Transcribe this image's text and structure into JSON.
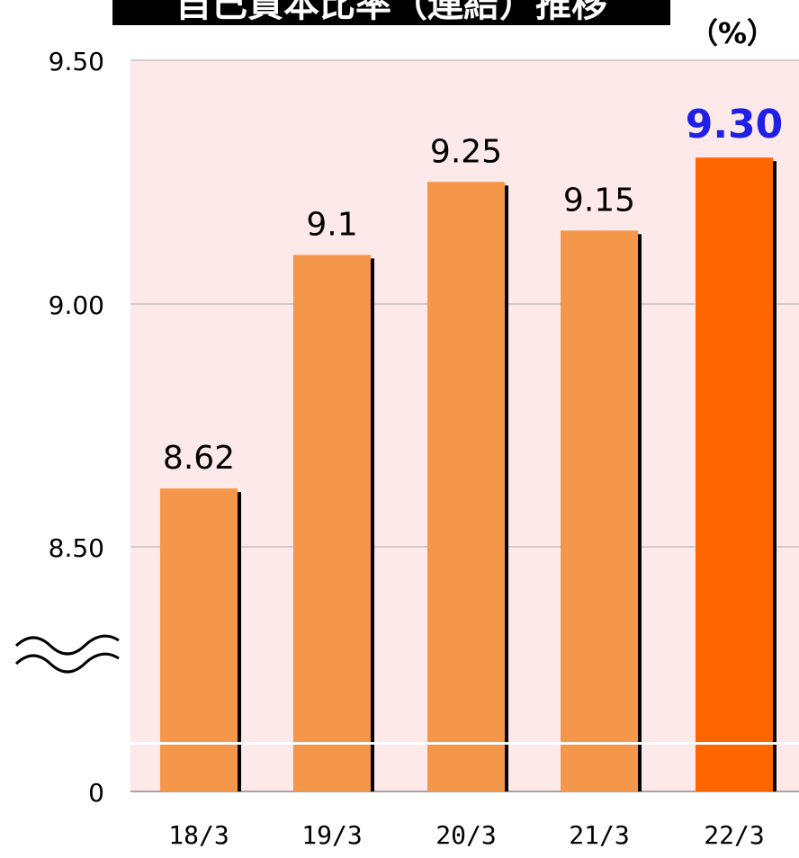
{
  "chart_data": {
    "type": "bar",
    "title": "自己資本比率（連結）推移",
    "unit_label": "（%）",
    "categories": [
      "18/3",
      "19/3",
      "20/3",
      "21/3",
      "22/3"
    ],
    "values": [
      8.62,
      9.1,
      9.25,
      9.15,
      9.3
    ],
    "data_labels": [
      "8.62",
      "9.1",
      "9.25",
      "9.15",
      "9.30"
    ],
    "highlight_index": 4,
    "y_ticks": [
      "9.50",
      "9.00",
      "8.50",
      "0"
    ],
    "axis_break": true,
    "ylim": [
      8.0,
      9.5
    ],
    "grid": true,
    "colors": {
      "bar": "#F5974A",
      "highlight_bar": "#FF6600",
      "shadow": "#000000",
      "plot_background": "#FDE9E9",
      "gridline": "#AAAAAA",
      "title_background": "#000000",
      "title_text": "#FFFFFF",
      "highlight_label": "#1F1FE6",
      "text": "#000000"
    }
  }
}
